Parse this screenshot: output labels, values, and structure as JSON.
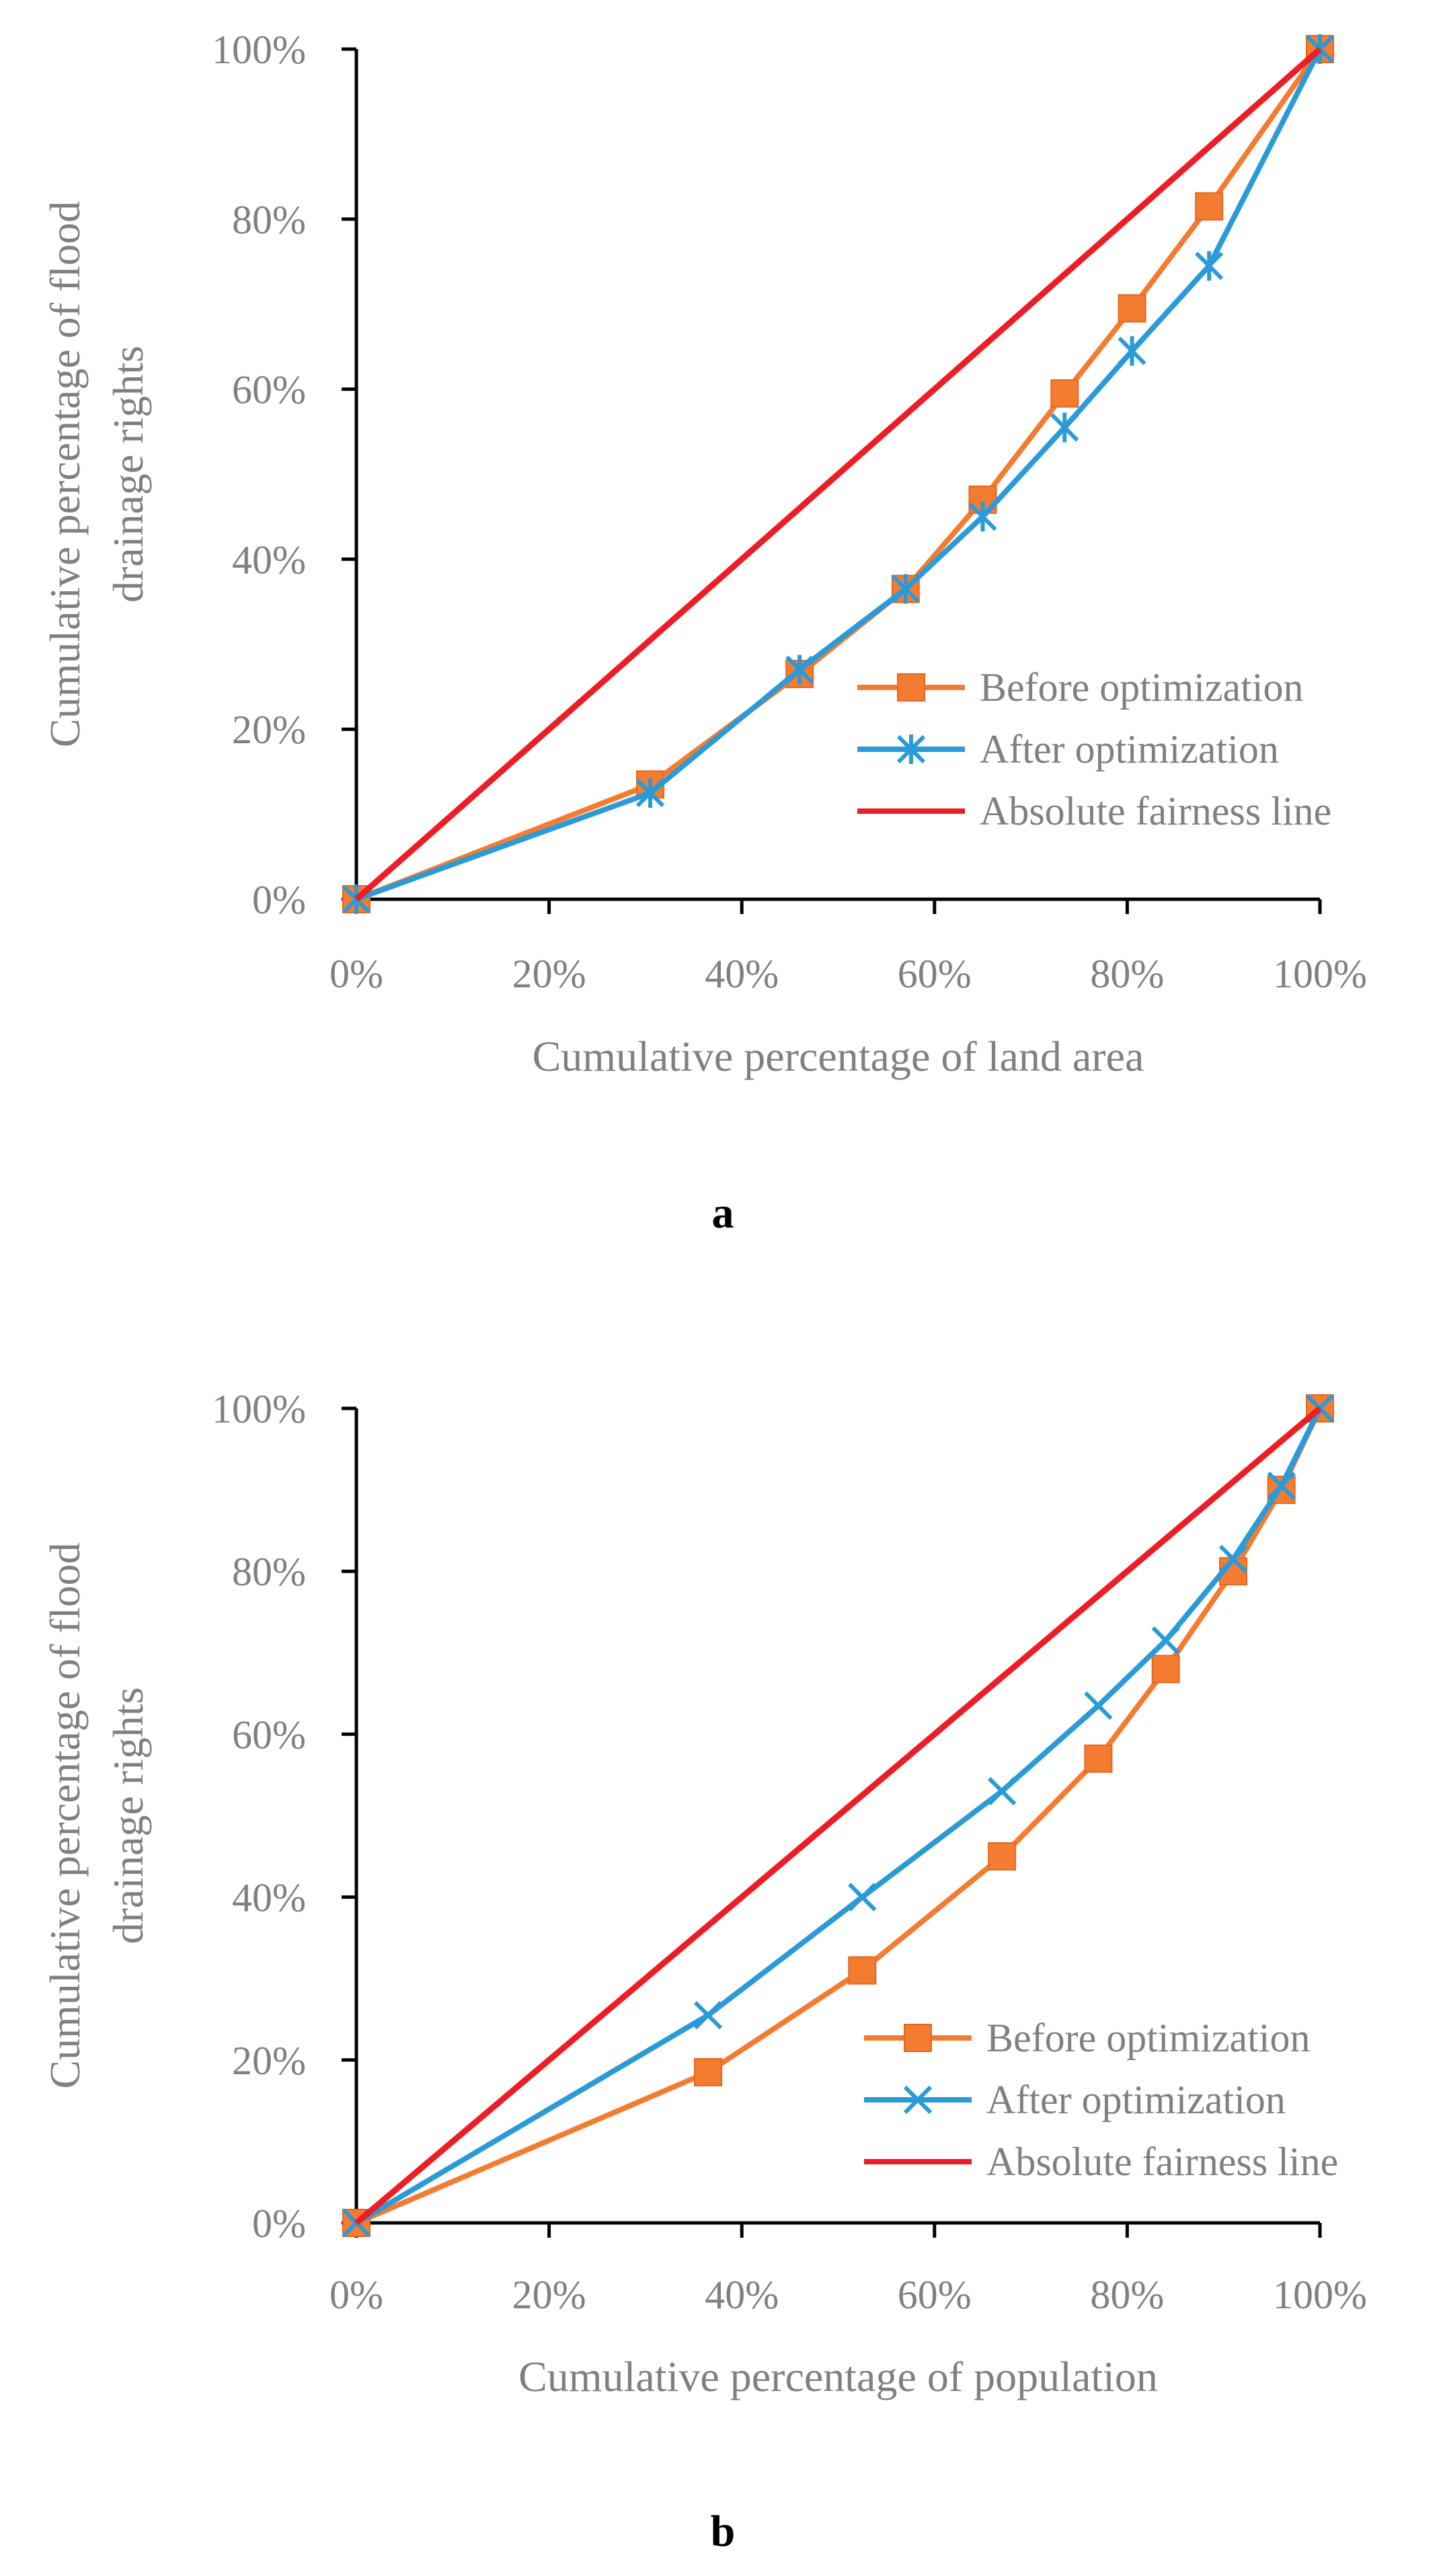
{
  "colors": {
    "before": "#F47C30",
    "after": "#2A9BD8",
    "fairness": "#EE1C24",
    "axis": "#000000",
    "text": "#808080"
  },
  "chart_data": [
    {
      "type": "line",
      "panel_label": "a",
      "xlabel": "Cumulative percentage of land area",
      "ylabel_lines": [
        "Cumulative percentage of flood",
        "drainage rights"
      ],
      "xlim": [
        0,
        100
      ],
      "ylim": [
        0,
        100
      ],
      "x_ticks": [
        "0%",
        "20%",
        "40%",
        "60%",
        "80%",
        "100%"
      ],
      "y_ticks": [
        "0%",
        "20%",
        "40%",
        "60%",
        "80%",
        "100%"
      ],
      "grid": false,
      "legend_position": "bottom-right",
      "series": [
        {
          "name": "Before optimization",
          "marker": "square",
          "color_key": "before",
          "x": [
            0,
            30.5,
            46,
            57,
            65,
            73.5,
            80.5,
            88.5,
            100
          ],
          "y": [
            0,
            13.5,
            26.5,
            36.5,
            47,
            59.5,
            69.5,
            81.5,
            100
          ]
        },
        {
          "name": "After optimization",
          "marker": "asterisk",
          "color_key": "after",
          "x": [
            0,
            30.5,
            46,
            57,
            65,
            73.5,
            80.5,
            88.5,
            100
          ],
          "y": [
            0,
            12.5,
            27,
            36.5,
            45,
            55.5,
            64.5,
            74.5,
            100
          ]
        },
        {
          "name": "Absolute fairness line",
          "marker": "none",
          "color_key": "fairness",
          "x": [
            0,
            100
          ],
          "y": [
            0,
            100
          ]
        }
      ]
    },
    {
      "type": "line",
      "panel_label": "b",
      "xlabel": "Cumulative percentage of population",
      "ylabel_lines": [
        "Cumulative percentage of flood",
        "drainage rights"
      ],
      "xlim": [
        0,
        100
      ],
      "ylim": [
        0,
        100
      ],
      "x_ticks": [
        "0%",
        "20%",
        "40%",
        "60%",
        "80%",
        "100%"
      ],
      "y_ticks": [
        "0%",
        "20%",
        "40%",
        "60%",
        "80%",
        "100%"
      ],
      "grid": false,
      "legend_position": "bottom-right",
      "series": [
        {
          "name": "Before optimization",
          "marker": "square",
          "color_key": "before",
          "x": [
            0,
            36.5,
            52.5,
            67,
            77,
            84,
            91,
            96,
            100
          ],
          "y": [
            0,
            18.5,
            31,
            45,
            57,
            68,
            80,
            90,
            100
          ]
        },
        {
          "name": "After optimization",
          "marker": "x",
          "color_key": "after",
          "x": [
            0,
            36.5,
            52.5,
            67,
            77,
            84,
            91,
            96,
            100
          ],
          "y": [
            0,
            25.5,
            40,
            53,
            63.5,
            71.5,
            81.5,
            90.5,
            100
          ]
        },
        {
          "name": "Absolute fairness line",
          "marker": "none",
          "color_key": "fairness",
          "x": [
            0,
            100
          ],
          "y": [
            0,
            100
          ]
        }
      ]
    }
  ]
}
